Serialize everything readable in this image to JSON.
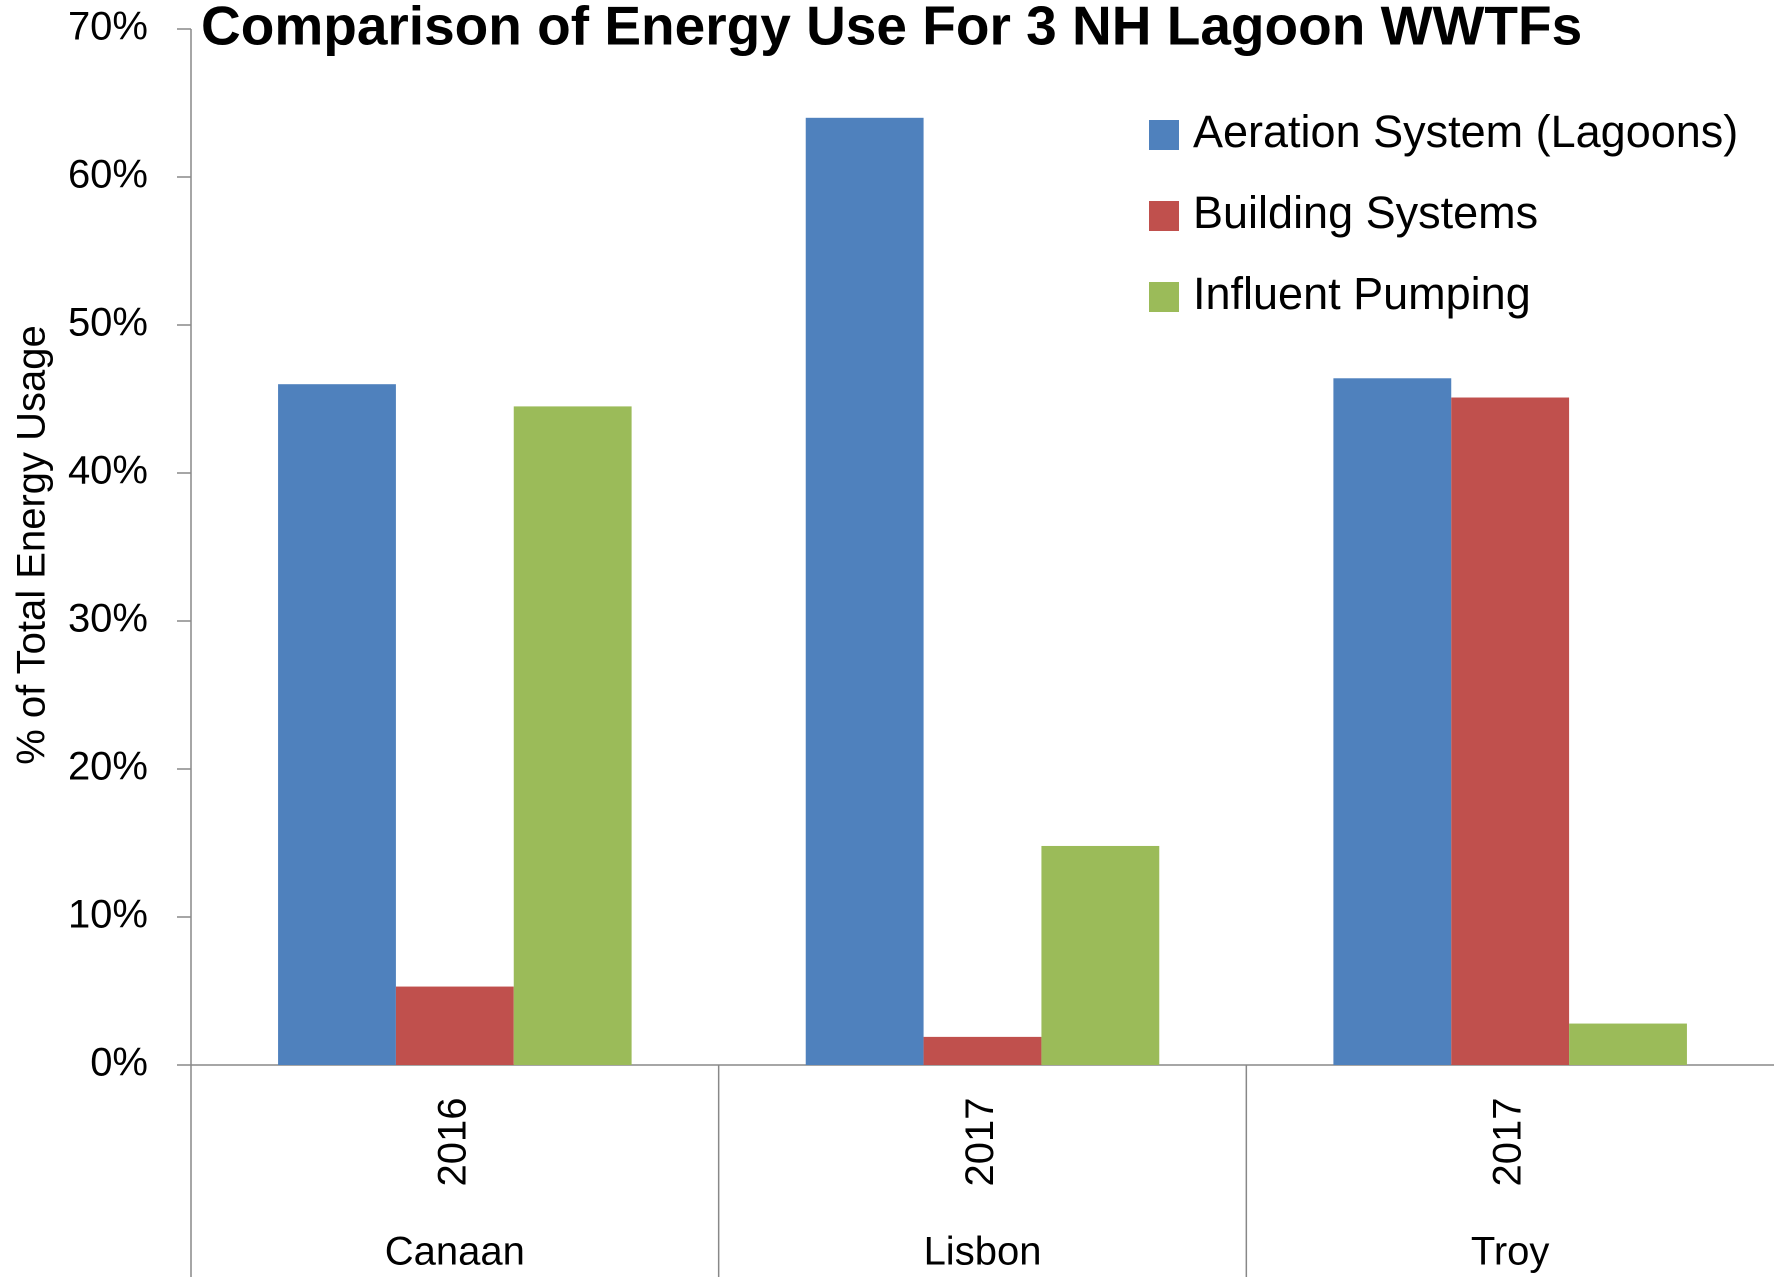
{
  "chart_data": {
    "type": "bar",
    "title": "Comparison of Energy Use For 3 NH Lagoon WWTFs",
    "y_label": "% of Total Energy Usage",
    "categories": [
      "Canaan",
      "Lisbon",
      "Troy"
    ],
    "category_years": [
      "2016",
      "2017",
      "2017"
    ],
    "series": [
      {
        "name": "Aeration System (Lagoons)",
        "color": "#4f81bd",
        "values": [
          46,
          64,
          46.4
        ]
      },
      {
        "name": "Building Systems",
        "color": "#c0504d",
        "values": [
          5.3,
          1.9,
          45.1
        ]
      },
      {
        "name": "Influent Pumping",
        "color": "#9bbb59",
        "values": [
          44.5,
          14.8,
          2.8
        ]
      }
    ],
    "ylim": [
      0,
      70
    ],
    "yticks": [
      {
        "value": 0,
        "label": "0%"
      },
      {
        "value": 10,
        "label": "10%"
      },
      {
        "value": 20,
        "label": "20%"
      },
      {
        "value": 30,
        "label": "30%"
      },
      {
        "value": 40,
        "label": "40%"
      },
      {
        "value": 50,
        "label": "50%"
      },
      {
        "value": 60,
        "label": "60%"
      },
      {
        "value": 70,
        "label": "70%"
      }
    ],
    "grid": false,
    "legend": "upper right"
  }
}
